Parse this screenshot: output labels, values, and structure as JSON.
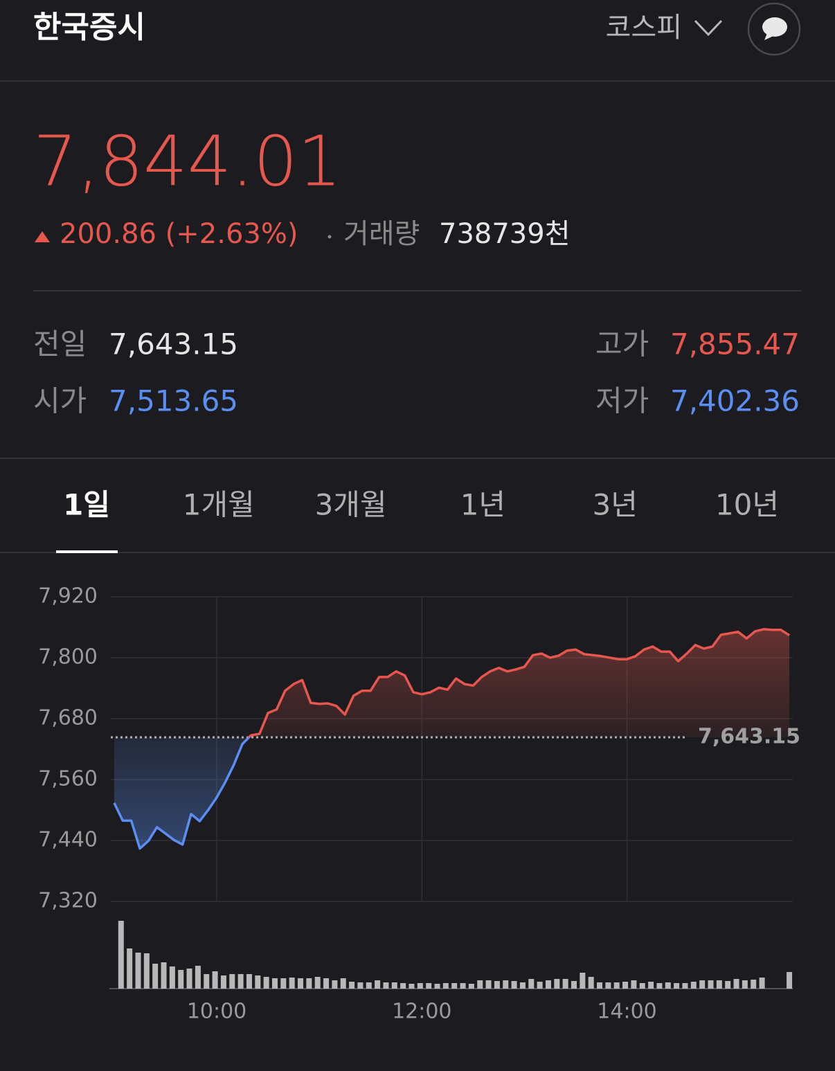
{
  "header": {
    "title": "한국증시",
    "market": "코스피"
  },
  "quote": {
    "price": "7,844.01",
    "change": "200.86 (+2.63%)",
    "volume_label": "거래량",
    "volume": "738739천"
  },
  "stats": [
    {
      "label": "전일",
      "value": "7,643.15",
      "color": "#e6e6e6"
    },
    {
      "label": "시가",
      "value": "7,513.65",
      "color": "#5b8ef2"
    },
    {
      "label": "고가",
      "value": "7,855.47",
      "color": "#e8574e"
    },
    {
      "label": "저가",
      "value": "7,402.36",
      "color": "#5b8ef2"
    }
  ],
  "tabs": [
    {
      "label": "1일",
      "selected": true
    },
    {
      "label": "1개월",
      "selected": false
    },
    {
      "label": "3개월",
      "selected": false
    },
    {
      "label": "1년",
      "selected": false
    },
    {
      "label": "3년",
      "selected": false
    },
    {
      "label": "10년",
      "selected": false
    }
  ],
  "chart_data": {
    "type": "line",
    "x": [
      540,
      545,
      550,
      555,
      560,
      565,
      575,
      580,
      585,
      590,
      595,
      600,
      605,
      610,
      615,
      620,
      625,
      630,
      635,
      640,
      645,
      650,
      655,
      660,
      665,
      670,
      675,
      680,
      685,
      690,
      695,
      700,
      705,
      710,
      715,
      720,
      725,
      730,
      735,
      740,
      745,
      750,
      755,
      760,
      765,
      770,
      775,
      780,
      785,
      790,
      795,
      800,
      805,
      810,
      815,
      825,
      835,
      840,
      845,
      850,
      855,
      860,
      865,
      870,
      875,
      880,
      885,
      890,
      895,
      900,
      905,
      910,
      915,
      920,
      925,
      930,
      935
    ],
    "values": [
      7514,
      7479,
      7479,
      7424,
      7439,
      7466,
      7441,
      7432,
      7492,
      7478,
      7500,
      7525,
      7555,
      7589,
      7630,
      7647,
      7650,
      7691,
      7698,
      7735,
      7748,
      7756,
      7711,
      7709,
      7710,
      7705,
      7688,
      7725,
      7735,
      7735,
      7762,
      7762,
      7773,
      7765,
      7732,
      7728,
      7732,
      7741,
      7737,
      7759,
      7748,
      7745,
      7762,
      7773,
      7780,
      7773,
      7777,
      7782,
      7805,
      7808,
      7800,
      7804,
      7814,
      7816,
      7807,
      7803,
      7797,
      7797,
      7803,
      7816,
      7822,
      7812,
      7812,
      7793,
      7808,
      7825,
      7818,
      7822,
      7845,
      7848,
      7851,
      7838,
      7852,
      7856,
      7855,
      7855,
      7844
    ],
    "reference": {
      "value": 7643.15,
      "label": "7,643.15"
    },
    "color_up": "#e8574e",
    "color_down": "#5b8ef2",
    "xlim": [
      538,
      937
    ],
    "xticks": [
      {
        "value": 600,
        "label": "10:00"
      },
      {
        "value": 720,
        "label": "12:00"
      },
      {
        "value": 840,
        "label": "14:00"
      }
    ],
    "ylim": [
      7320,
      7920
    ],
    "yticks": [
      {
        "value": 7320,
        "label": "7,320"
      },
      {
        "value": 7440,
        "label": "7,440"
      },
      {
        "value": 7560,
        "label": "7,560"
      },
      {
        "value": 7680,
        "label": "7,680"
      },
      {
        "value": 7800,
        "label": "7,800"
      },
      {
        "value": 7920,
        "label": "7,920"
      }
    ],
    "grid": true,
    "volume": {
      "color": "#b8b8b8",
      "x": [
        544,
        549,
        554,
        559,
        564,
        569,
        574,
        579,
        584,
        589,
        594,
        599,
        604,
        609,
        614,
        619,
        624,
        629,
        634,
        639,
        644,
        649,
        654,
        659,
        664,
        669,
        674,
        679,
        684,
        689,
        694,
        699,
        704,
        709,
        714,
        719,
        724,
        729,
        734,
        739,
        744,
        749,
        754,
        759,
        764,
        769,
        774,
        779,
        784,
        789,
        794,
        799,
        804,
        809,
        814,
        819,
        824,
        829,
        834,
        839,
        844,
        849,
        854,
        859,
        864,
        869,
        874,
        879,
        884,
        889,
        894,
        899,
        904,
        909,
        914,
        919,
        935
      ],
      "values": [
        98,
        58,
        52,
        51,
        36,
        38,
        32,
        27,
        29,
        33,
        21,
        25,
        19,
        21,
        21,
        21,
        19,
        17,
        15,
        15,
        16,
        15,
        15,
        17,
        15,
        12,
        15,
        10,
        9,
        9,
        12,
        9,
        9,
        8,
        7,
        8,
        8,
        7,
        8,
        8,
        8,
        7,
        12,
        12,
        11,
        12,
        11,
        9,
        14,
        10,
        12,
        14,
        14,
        11,
        23,
        17,
        9,
        9,
        9,
        10,
        12,
        8,
        10,
        8,
        9,
        8,
        8,
        10,
        12,
        12,
        12,
        11,
        14,
        12,
        13,
        16,
        24
      ]
    }
  }
}
